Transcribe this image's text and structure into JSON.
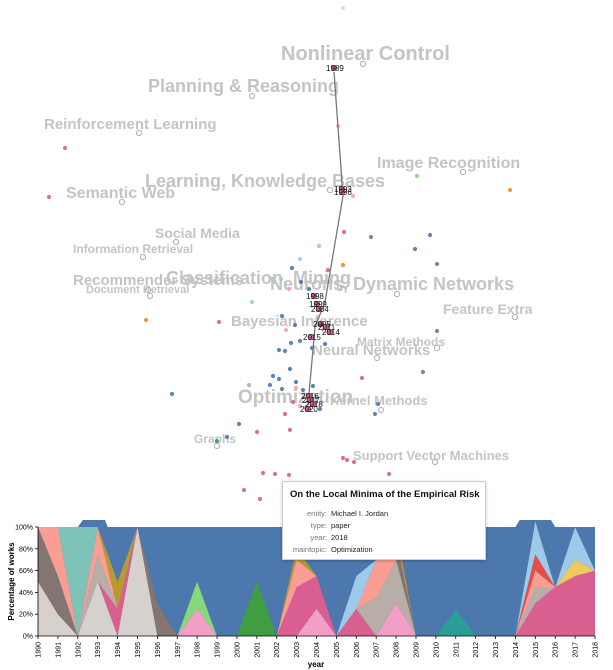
{
  "chart_data": [
    {
      "type": "scatter",
      "topics": [
        {
          "label": "Nonlinear Control"
        },
        {
          "label": "Planning & Reasoning"
        },
        {
          "label": "Reinforcement Learning"
        },
        {
          "label": "Image Recognition"
        },
        {
          "label": "Semantic Web"
        },
        {
          "label": "Learning, Knowledge Bases"
        },
        {
          "label": "Social Media"
        },
        {
          "label": "Information Retrieval"
        },
        {
          "label": "Recommender Systems"
        },
        {
          "label": "Document Retrieval"
        },
        {
          "label": "Classification, Mining"
        },
        {
          "label": "Neurons, Dynamic Networks"
        },
        {
          "label": "Feature Extraction"
        },
        {
          "label": "Bayesian Inference"
        },
        {
          "label": "Matrix Methods"
        },
        {
          "label": "Neural Networks"
        },
        {
          "label": "Optimization"
        },
        {
          "label": "Kernel Methods"
        },
        {
          "label": "Graphs"
        },
        {
          "label": "Support Vector Machines"
        }
      ],
      "trajectory_years": [
        "1989",
        "1993",
        "1996",
        "1998",
        "1999",
        "2004",
        "2005",
        "2011",
        "2014",
        "2015",
        "2016",
        "2017",
        "2018",
        "2020"
      ]
    },
    {
      "type": "area",
      "stacked": true,
      "normalized": true,
      "x": [
        "1990",
        "1991",
        "1992",
        "1993",
        "1994",
        "1995",
        "1996",
        "1997",
        "1998",
        "1999",
        "2000",
        "2001",
        "2002",
        "2003",
        "2004",
        "2005",
        "2006",
        "2007",
        "2008",
        "2009",
        "2010",
        "2011",
        "2012",
        "2013",
        "2014",
        "2015",
        "2016",
        "2017",
        "2018"
      ],
      "xlabel": "year",
      "ylabel": "Percentage of works",
      "yticks": [
        "0%",
        "20%",
        "40%",
        "60%",
        "80%",
        "100%"
      ],
      "series": [
        {
          "color": "#d6d1cc",
          "values": [
            50,
            20,
            0,
            50,
            0,
            100,
            0,
            0,
            0,
            0,
            0,
            0,
            0,
            0,
            0,
            0,
            0,
            0,
            0,
            0,
            0,
            0,
            0,
            0,
            0,
            0,
            0,
            0,
            0
          ]
        },
        {
          "color": "#847570",
          "values": [
            50,
            35,
            0,
            0,
            0,
            0,
            30,
            0,
            0,
            0,
            0,
            0,
            0,
            0,
            0,
            0,
            0,
            0,
            0,
            0,
            0,
            0,
            0,
            0,
            0,
            0,
            0,
            0,
            0
          ]
        },
        {
          "color": "#f29ec6",
          "values": [
            0,
            0,
            0,
            0,
            0,
            0,
            0,
            0,
            25,
            0,
            0,
            0,
            0,
            0,
            25,
            0,
            0,
            0,
            30,
            0,
            0,
            0,
            0,
            0,
            0,
            0,
            0,
            0,
            0
          ]
        },
        {
          "color": "#d95f91",
          "values": [
            0,
            0,
            0,
            0,
            25,
            0,
            0,
            0,
            0,
            0,
            0,
            0,
            0,
            45,
            30,
            0,
            25,
            0,
            0,
            0,
            0,
            0,
            0,
            0,
            0,
            30,
            45,
            55,
            60
          ]
        },
        {
          "color": "#b9aea7",
          "values": [
            0,
            0,
            0,
            25,
            0,
            0,
            0,
            0,
            0,
            0,
            0,
            0,
            0,
            0,
            0,
            0,
            0,
            35,
            40,
            0,
            0,
            0,
            0,
            0,
            0,
            15,
            0,
            0,
            0
          ]
        },
        {
          "color": "#fa9e94",
          "values": [
            0,
            45,
            0,
            25,
            0,
            0,
            0,
            0,
            0,
            0,
            0,
            0,
            0,
            25,
            0,
            0,
            0,
            35,
            0,
            0,
            0,
            0,
            0,
            0,
            0,
            15,
            0,
            0,
            0
          ]
        },
        {
          "color": "#7f7670",
          "values": [
            0,
            0,
            0,
            0,
            0,
            0,
            0,
            0,
            0,
            0,
            0,
            0,
            0,
            0,
            0,
            0,
            0,
            0,
            20,
            0,
            0,
            0,
            0,
            0,
            0,
            0,
            0,
            0,
            0
          ]
        },
        {
          "color": "#e54c4c",
          "values": [
            0,
            0,
            0,
            0,
            0,
            0,
            0,
            0,
            0,
            0,
            0,
            0,
            0,
            0,
            0,
            0,
            0,
            0,
            0,
            0,
            0,
            0,
            0,
            0,
            0,
            15,
            0,
            0,
            0
          ]
        },
        {
          "color": "#3f9e42",
          "values": [
            0,
            0,
            0,
            0,
            0,
            0,
            0,
            0,
            0,
            0,
            0,
            50,
            0,
            0,
            0,
            0,
            0,
            0,
            0,
            0,
            0,
            0,
            0,
            0,
            0,
            0,
            0,
            0,
            0
          ]
        },
        {
          "color": "#86d87a",
          "values": [
            0,
            0,
            0,
            0,
            0,
            0,
            0,
            0,
            25,
            0,
            0,
            0,
            0,
            0,
            0,
            0,
            0,
            0,
            0,
            0,
            0,
            0,
            0,
            0,
            0,
            0,
            0,
            0,
            0
          ]
        },
        {
          "color": "#2a9d96",
          "values": [
            0,
            0,
            0,
            0,
            0,
            0,
            0,
            0,
            0,
            0,
            0,
            0,
            0,
            0,
            0,
            0,
            0,
            0,
            0,
            0,
            0,
            25,
            0,
            0,
            0,
            0,
            0,
            0,
            0
          ]
        },
        {
          "color": "#7ec2b8",
          "values": [
            0,
            0,
            100,
            0,
            0,
            0,
            0,
            0,
            0,
            0,
            0,
            0,
            0,
            0,
            0,
            0,
            0,
            0,
            0,
            0,
            0,
            0,
            0,
            0,
            0,
            0,
            0,
            0,
            0
          ]
        },
        {
          "color": "#ba9a2e",
          "values": [
            0,
            0,
            0,
            0,
            25,
            0,
            0,
            0,
            0,
            0,
            0,
            0,
            0,
            10,
            0,
            0,
            0,
            0,
            0,
            0,
            0,
            0,
            0,
            0,
            0,
            0,
            0,
            0,
            0
          ]
        },
        {
          "color": "#eec95e",
          "values": [
            0,
            0,
            0,
            0,
            0,
            0,
            0,
            0,
            0,
            0,
            0,
            0,
            0,
            0,
            0,
            0,
            0,
            0,
            0,
            0,
            0,
            0,
            0,
            0,
            0,
            0,
            0,
            15,
            0
          ]
        },
        {
          "color": "#f28b1c",
          "values": [
            0,
            0,
            0,
            0,
            0,
            0,
            0,
            0,
            0,
            0,
            0,
            0,
            0,
            0,
            0,
            0,
            0,
            0,
            10,
            0,
            0,
            0,
            0,
            0,
            0,
            0,
            0,
            0,
            0
          ]
        },
        {
          "color": "#9ccae8",
          "values": [
            0,
            0,
            0,
            0,
            0,
            0,
            0,
            0,
            0,
            0,
            0,
            0,
            0,
            0,
            0,
            0,
            30,
            0,
            0,
            0,
            0,
            0,
            0,
            0,
            0,
            30,
            0,
            30,
            0
          ]
        },
        {
          "color": "#4c78ad",
          "values": [
            0,
            0,
            0,
            25,
            25,
            0,
            70,
            100,
            50,
            100,
            100,
            50,
            100,
            20,
            45,
            100,
            45,
            30,
            0,
            100,
            100,
            75,
            100,
            100,
            100,
            25,
            55,
            0,
            40
          ]
        }
      ]
    }
  ],
  "tooltip": {
    "title": "On the Local Minima of the Empirical Risk",
    "rows": [
      {
        "key": "entity:",
        "value": "Michael I. Jordan"
      },
      {
        "key": "type:",
        "value": "paper"
      },
      {
        "key": "year:",
        "value": "2018"
      },
      {
        "key": "maintopic:",
        "value": "Optimization"
      }
    ]
  }
}
